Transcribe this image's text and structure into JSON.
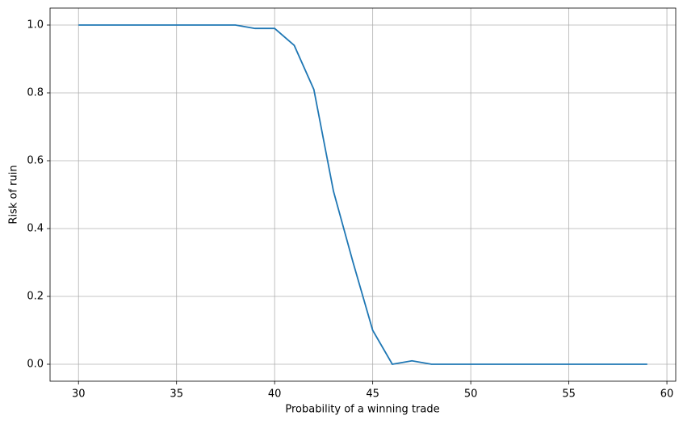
{
  "chart_data": {
    "type": "line",
    "xlabel": "Probability of a winning trade",
    "ylabel": "Risk of ruin",
    "x": [
      30,
      31,
      32,
      33,
      34,
      35,
      36,
      37,
      38,
      39,
      40,
      41,
      42,
      43,
      44,
      45,
      46,
      47,
      48,
      49,
      50,
      51,
      52,
      53,
      54,
      55,
      56,
      57,
      58,
      59
    ],
    "series": [
      {
        "color": "#1f77b4",
        "values": [
          1.0,
          1.0,
          1.0,
          1.0,
          1.0,
          1.0,
          1.0,
          1.0,
          1.0,
          0.99,
          0.99,
          0.94,
          0.81,
          0.51,
          0.3,
          0.1,
          0.0,
          0.01,
          0.0,
          0.0,
          0.0,
          0.0,
          0.0,
          0.0,
          0.0,
          0.0,
          0.0,
          0.0,
          0.0,
          0.0
        ]
      }
    ],
    "xlim": [
      28.55,
      60.45
    ],
    "ylim": [
      -0.05,
      1.05
    ],
    "xticks": [
      30,
      35,
      40,
      45,
      50,
      55,
      60
    ],
    "yticks": [
      {
        "value": 0,
        "label": "0.0"
      },
      0.2,
      0.4,
      0.6,
      0.8,
      {
        "value": 1,
        "label": "1.0"
      }
    ],
    "grid": true
  }
}
